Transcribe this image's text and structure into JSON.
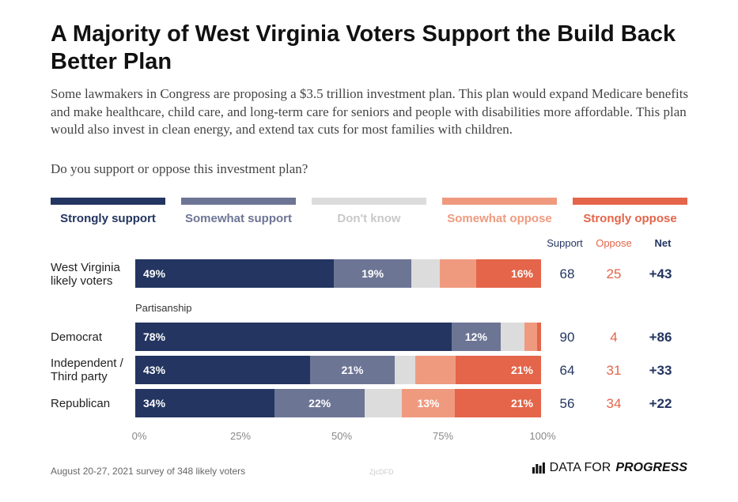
{
  "title": "A Majority of West Virginia Voters Support the Build Back Better Plan",
  "subtitle": "Some lawmakers in Congress are proposing a $3.5 trillion investment plan. This plan would expand Medicare benefits and make healthcare, child care, and long-term care for seniors and people with disabilities more affordable. This plan would also invest in clean energy, and extend tax cuts for most families with children.",
  "question": "Do you support or oppose this investment plan?",
  "legend": [
    {
      "label": "Strongly support",
      "color": "#233560",
      "text_color": "#233560"
    },
    {
      "label": "Somewhat support",
      "color": "#6d7595",
      "text_color": "#6d7595"
    },
    {
      "label": "Don't know",
      "color": "#dcdcdc",
      "text_color": "#c8c8c8"
    },
    {
      "label": "Somewhat oppose",
      "color": "#ef9a7f",
      "text_color": "#ef9a7f"
    },
    {
      "label": "Strongly oppose",
      "color": "#e4654a",
      "text_color": "#e4654a"
    }
  ],
  "columns": {
    "support": "Support",
    "oppose": "Oppose",
    "net": "Net"
  },
  "section_label": "Partisanship",
  "colors": {
    "support": "#233560",
    "oppose": "#e4654a",
    "net": "#233560"
  },
  "chart_data": {
    "type": "bar",
    "orientation": "horizontal",
    "stacked": true,
    "categories": [
      "West Virginia likely voters",
      "Democrat",
      "Independent / Third party",
      "Republican"
    ],
    "series": [
      {
        "name": "Strongly support",
        "values": [
          49,
          78,
          43,
          34
        ],
        "labels": [
          "49%",
          "78%",
          "43%",
          "34%"
        ]
      },
      {
        "name": "Somewhat support",
        "values": [
          19,
          12,
          21,
          22
        ],
        "labels": [
          "19%",
          "12%",
          "21%",
          "22%"
        ]
      },
      {
        "name": "Don't know",
        "values": [
          7,
          6,
          5,
          9
        ],
        "labels": [
          "",
          "",
          "",
          ""
        ]
      },
      {
        "name": "Somewhat oppose",
        "values": [
          9,
          3,
          10,
          13
        ],
        "labels": [
          "",
          "",
          "",
          "13%"
        ]
      },
      {
        "name": "Strongly oppose",
        "values": [
          16,
          1,
          21,
          21
        ],
        "labels": [
          "16%",
          "",
          "21%",
          "21%"
        ]
      }
    ],
    "support": [
      "68",
      "90",
      "64",
      "56"
    ],
    "oppose": [
      "25",
      "4",
      "31",
      "34"
    ],
    "net": [
      "+43",
      "+86",
      "+33",
      "+22"
    ],
    "xlim": [
      0,
      100
    ],
    "ticks": [
      "0%",
      "25%",
      "50%",
      "75%",
      "100%"
    ]
  },
  "row_labels": {
    "wv": [
      "West Virginia",
      "likely voters"
    ],
    "dem": [
      "Democrat"
    ],
    "ind": [
      "Independent /",
      "Third party"
    ],
    "rep": [
      "Republican"
    ]
  },
  "footer": "August 20-27, 2021 survey of 348 likely voters",
  "watermark": "ZjcDFD",
  "brand": {
    "prefix": "DATA FOR",
    "emphasis": "PROGRESS"
  }
}
